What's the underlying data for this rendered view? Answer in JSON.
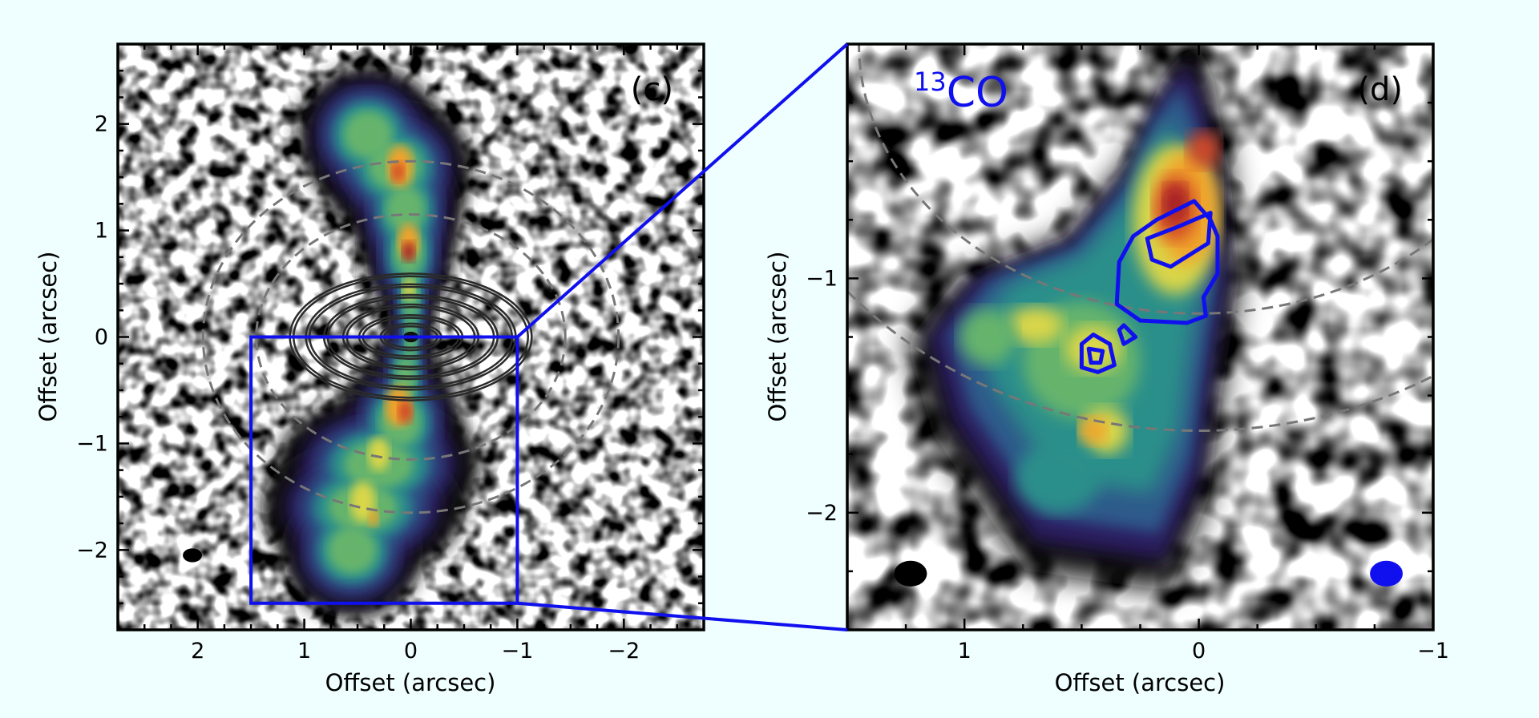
{
  "colors": {
    "background": "#effefe",
    "inset_box": "#1010ee",
    "ring_contours": "#2a2a2a",
    "dashed_ellipses": "#777777",
    "co13_contours": "#1010ee",
    "beam_dust": "#000000",
    "beam_co": "#1010ee",
    "colormap": [
      "#ffffff",
      "#101010",
      "#2a1a5e",
      "#2e5a8a",
      "#2b8f8a",
      "#66b46c",
      "#d9d64a",
      "#f0a22a",
      "#d04a28",
      "#a01e28"
    ]
  },
  "chart_data": [
    {
      "type": "heatmap",
      "panel_label": "(c)",
      "xlabel": "Offset (arcsec)",
      "ylabel": "Offset (arcsec)",
      "xlim": [
        2.75,
        -2.75
      ],
      "ylim": [
        -2.75,
        2.75
      ],
      "xticks": [
        2,
        1,
        0,
        -1,
        -2
      ],
      "xtick_labels": [
        "2",
        "1",
        "0",
        "−1",
        "−2"
      ],
      "yticks": [
        -2,
        -1,
        0,
        1,
        2
      ],
      "ytick_labels": [
        "−2",
        "−1",
        "0",
        "1",
        "2"
      ],
      "emission_ridge": [
        {
          "y": 1.9,
          "x": 0.4,
          "w": 0.35
        },
        {
          "y": 1.6,
          "x": 0.15,
          "w": 0.38
        },
        {
          "y": 1.2,
          "x": 0.05,
          "w": 0.28
        },
        {
          "y": 0.8,
          "x": 0.02,
          "w": 0.22
        },
        {
          "y": 0.4,
          "x": 0.0,
          "w": 0.12
        },
        {
          "y": 0.0,
          "x": 0.0,
          "w": 0.08
        },
        {
          "y": -0.4,
          "x": 0.05,
          "w": 0.15
        },
        {
          "y": -0.8,
          "x": 0.1,
          "w": 0.3
        },
        {
          "y": -1.2,
          "x": 0.3,
          "w": 0.5
        },
        {
          "y": -1.6,
          "x": 0.45,
          "w": 0.5
        },
        {
          "y": -2.0,
          "x": 0.55,
          "w": 0.35
        }
      ],
      "ring_contours_semi_axes": [
        [
          0.25,
          0.1
        ],
        [
          0.45,
          0.18
        ],
        [
          0.6,
          0.28
        ],
        [
          0.78,
          0.37
        ],
        [
          0.95,
          0.47
        ],
        [
          1.1,
          0.57
        ]
      ],
      "dashed_ellipses_semi_axes": [
        [
          1.95,
          1.65
        ],
        [
          1.45,
          1.15
        ]
      ],
      "inset_box": {
        "x": [
          1.5,
          -1.0
        ],
        "y": [
          -2.5,
          0.0
        ]
      },
      "beam": {
        "x": 2.05,
        "y": -2.05,
        "major": 0.09,
        "minor": 0.065
      }
    },
    {
      "type": "heatmap",
      "panel_label": "(d)",
      "annotation": "CO",
      "annotation_superscript": "13",
      "xlabel": "Offset (arcsec)",
      "ylabel": "Offset (arcsec)",
      "xlim": [
        1.5,
        -1.0
      ],
      "ylim": [
        -2.5,
        0.0
      ],
      "xticks": [
        1,
        0,
        -1
      ],
      "xtick_labels": [
        "1",
        "0",
        "−1"
      ],
      "yticks": [
        -2,
        -1
      ],
      "ytick_labels": [
        "−2",
        "−1"
      ],
      "emission_boundary": [
        [
          0.05,
          -0.08
        ],
        [
          -0.02,
          -0.25
        ],
        [
          -0.08,
          -0.6
        ],
        [
          -0.12,
          -1.0
        ],
        [
          -0.05,
          -1.45
        ],
        [
          0.0,
          -1.85
        ],
        [
          0.15,
          -2.2
        ],
        [
          0.7,
          -2.12
        ],
        [
          1.05,
          -1.6
        ],
        [
          1.15,
          -1.25
        ],
        [
          0.95,
          -1.0
        ],
        [
          0.55,
          -0.85
        ],
        [
          0.3,
          -0.55
        ],
        [
          0.18,
          -0.25
        ]
      ],
      "co13_contours": [
        [
          [
            -0.05,
            -0.75
          ],
          [
            -0.08,
            -0.82
          ],
          [
            -0.08,
            -0.98
          ],
          [
            -0.02,
            -1.08
          ],
          [
            -0.03,
            -1.16
          ],
          [
            0.05,
            -1.19
          ],
          [
            0.25,
            -1.18
          ],
          [
            0.35,
            -1.11
          ],
          [
            0.34,
            -0.93
          ],
          [
            0.28,
            -0.82
          ],
          [
            0.18,
            -0.75
          ],
          [
            0.02,
            -0.67
          ]
        ],
        [
          [
            -0.05,
            -0.72
          ],
          [
            -0.04,
            -0.85
          ],
          [
            0.12,
            -0.95
          ],
          [
            0.2,
            -0.92
          ],
          [
            0.22,
            -0.83
          ],
          [
            0.09,
            -0.78
          ]
        ],
        [
          [
            0.32,
            -1.2
          ],
          [
            0.27,
            -1.25
          ],
          [
            0.32,
            -1.28
          ],
          [
            0.34,
            -1.22
          ]
        ],
        [
          [
            0.5,
            -1.28
          ],
          [
            0.5,
            -1.38
          ],
          [
            0.43,
            -1.4
          ],
          [
            0.36,
            -1.37
          ],
          [
            0.38,
            -1.28
          ],
          [
            0.45,
            -1.24
          ]
        ],
        [
          [
            0.47,
            -1.3
          ],
          [
            0.46,
            -1.36
          ],
          [
            0.42,
            -1.36
          ],
          [
            0.41,
            -1.31
          ]
        ]
      ],
      "dashed_arcs_semi_axes": [
        [
          1.95,
          1.65
        ],
        [
          1.45,
          1.15
        ]
      ],
      "beams": [
        {
          "x": 1.23,
          "y": -2.26,
          "major": 0.07,
          "minor": 0.055,
          "color": "dust"
        },
        {
          "x": -0.8,
          "y": -2.26,
          "major": 0.07,
          "minor": 0.055,
          "color": "co"
        }
      ]
    }
  ]
}
